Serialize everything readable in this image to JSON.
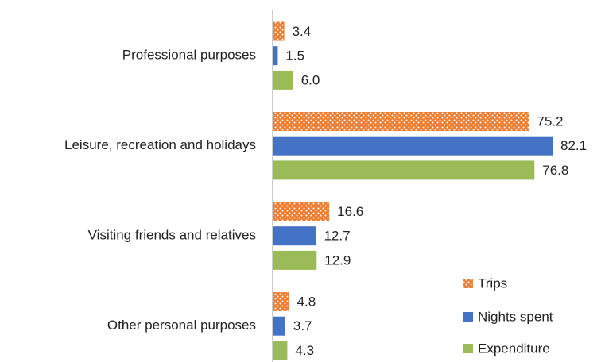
{
  "chart_data": {
    "type": "hbar",
    "categories": [
      "Professional purposes",
      "Leisure, recreation and holidays",
      "Visiting friends and relatives",
      "Other personal purposes"
    ],
    "series": [
      {
        "name": "Trips",
        "color": "#ed7d31",
        "pattern": "dots",
        "values": [
          3.4,
          75.2,
          16.6,
          4.8
        ],
        "value_labels": [
          "3.4",
          "75.2",
          "16.6",
          "4.8"
        ]
      },
      {
        "name": "Nights spent",
        "color": "#4472c4",
        "values": [
          1.5,
          82.1,
          12.7,
          3.7
        ],
        "value_labels": [
          "1.5",
          "82.1",
          "12.7",
          "3.7"
        ]
      },
      {
        "name": "Expenditure",
        "color": "#9bbb59",
        "values": [
          6.0,
          76.8,
          12.9,
          4.3
        ],
        "value_labels": [
          "6.0",
          "76.8",
          "12.9",
          "4.3"
        ]
      }
    ],
    "legend": "bottom-right"
  }
}
